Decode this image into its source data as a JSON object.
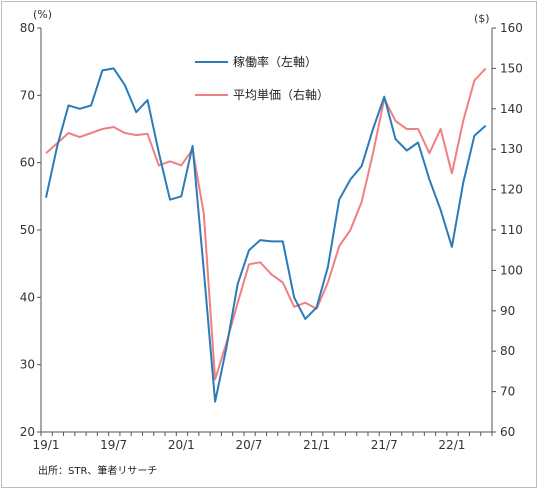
{
  "chart_data": {
    "type": "line",
    "title": "",
    "source": "出所：STR、筆者リサーチ",
    "left_axis": {
      "unit": "(%)",
      "ylim": [
        20,
        80
      ],
      "ticks": [
        20,
        30,
        40,
        50,
        60,
        70,
        80
      ]
    },
    "right_axis": {
      "unit": "($)",
      "ylim": [
        60,
        160
      ],
      "ticks": [
        60,
        70,
        80,
        90,
        100,
        110,
        120,
        130,
        140,
        150,
        160
      ]
    },
    "x_tick_labels": [
      "19/1",
      "19/7",
      "20/1",
      "20/7",
      "21/1",
      "21/7",
      "22/1"
    ],
    "x_tick_index": [
      0,
      6,
      12,
      18,
      24,
      30,
      36
    ],
    "legend_position": "top-center",
    "grid": false,
    "x": [
      "19/1",
      "19/2",
      "19/3",
      "19/4",
      "19/5",
      "19/6",
      "19/7",
      "19/8",
      "19/9",
      "19/10",
      "19/11",
      "19/12",
      "20/1",
      "20/2",
      "20/3",
      "20/4",
      "20/5",
      "20/6",
      "20/7",
      "20/8",
      "20/9",
      "20/10",
      "20/11",
      "20/12",
      "21/1",
      "21/2",
      "21/3",
      "21/4",
      "21/5",
      "21/6",
      "21/7",
      "21/8",
      "21/9",
      "21/10",
      "21/11",
      "21/12",
      "22/1",
      "22/2",
      "22/3",
      "22/4"
    ],
    "series": [
      {
        "name": "稼働率（左軸）",
        "axis": "left",
        "color": "#2b7bba",
        "values": [
          54.8,
          62.5,
          68.5,
          68.0,
          68.5,
          73.7,
          74.0,
          71.5,
          67.5,
          69.3,
          61.5,
          54.5,
          55.0,
          62.5,
          44.0,
          24.5,
          32.5,
          42.0,
          47.0,
          48.5,
          48.3,
          48.3,
          40.0,
          36.8,
          38.5,
          44.5,
          54.5,
          57.5,
          59.5,
          65.0,
          69.8,
          63.5,
          61.8,
          63.0,
          57.5,
          53.0,
          47.5,
          57.0,
          64.0,
          65.5
        ]
      },
      {
        "name": "平均単価（右軸）",
        "axis": "right",
        "color": "#ef8080",
        "values": [
          129.0,
          131.5,
          134.0,
          133.0,
          134.0,
          135.0,
          135.5,
          134.0,
          133.5,
          133.8,
          126.0,
          127.0,
          126.0,
          130.0,
          114.0,
          73.0,
          82.0,
          92.0,
          101.5,
          102.0,
          99.0,
          97.0,
          91.0,
          92.0,
          90.5,
          97.0,
          106.0,
          110.0,
          117.0,
          129.0,
          142.5,
          137.0,
          135.0,
          135.0,
          129.0,
          135.0,
          124.0,
          137.0,
          147.0,
          150.0
        ]
      }
    ]
  }
}
